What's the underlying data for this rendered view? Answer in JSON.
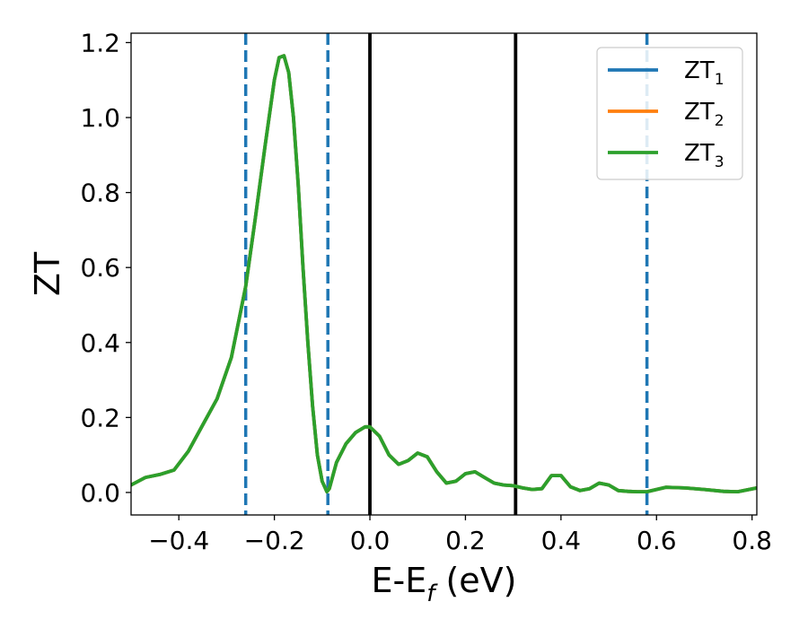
{
  "chart_data": {
    "type": "line",
    "title": "",
    "xlabel": {
      "main": "E-E",
      "sub": "f",
      "suffix": " (eV)"
    },
    "ylabel": "ZT",
    "xlim": [
      -0.5,
      0.81
    ],
    "ylim": [
      -0.06,
      1.225
    ],
    "xticks": [
      -0.4,
      -0.2,
      0.0,
      0.2,
      0.4,
      0.6,
      0.8
    ],
    "xtick_labels": [
      "−0.4",
      "−0.2",
      "0.0",
      "0.2",
      "0.4",
      "0.6",
      "0.8"
    ],
    "yticks": [
      0.0,
      0.2,
      0.4,
      0.6,
      0.8,
      1.0,
      1.2
    ],
    "ytick_labels": [
      "0.0",
      "0.2",
      "0.4",
      "0.6",
      "0.8",
      "1.0",
      "1.2"
    ],
    "grid": false,
    "legend_placement": "top-right",
    "vlines": [
      {
        "x": -0.26,
        "style": "dashed",
        "color": "#1f77b4"
      },
      {
        "x": -0.088,
        "style": "dashed",
        "color": "#1f77b4"
      },
      {
        "x": 0.0,
        "style": "solid",
        "color": "#000000"
      },
      {
        "x": 0.305,
        "style": "solid",
        "color": "#000000"
      },
      {
        "x": 0.58,
        "style": "dashed",
        "color": "#1f77b4"
      }
    ],
    "series": [
      {
        "name": {
          "main": "ZT",
          "sub": "1"
        },
        "color": "#1f77b4"
      },
      {
        "name": {
          "main": "ZT",
          "sub": "2"
        },
        "color": "#ff7f0e"
      },
      {
        "name": {
          "main": "ZT",
          "sub": "3"
        },
        "color": "#2ca02c"
      }
    ],
    "x": [
      -0.5,
      -0.47,
      -0.44,
      -0.41,
      -0.38,
      -0.35,
      -0.32,
      -0.29,
      -0.26,
      -0.24,
      -0.22,
      -0.2,
      -0.19,
      -0.18,
      -0.17,
      -0.16,
      -0.15,
      -0.14,
      -0.13,
      -0.12,
      -0.11,
      -0.1,
      -0.09,
      -0.085,
      -0.07,
      -0.05,
      -0.03,
      -0.01,
      0.0,
      0.02,
      0.04,
      0.06,
      0.08,
      0.1,
      0.12,
      0.14,
      0.16,
      0.18,
      0.2,
      0.22,
      0.24,
      0.26,
      0.28,
      0.3,
      0.32,
      0.34,
      0.36,
      0.38,
      0.4,
      0.42,
      0.44,
      0.46,
      0.48,
      0.5,
      0.52,
      0.54,
      0.56,
      0.58,
      0.62,
      0.66,
      0.7,
      0.74,
      0.77,
      0.81
    ],
    "y": [
      0.02,
      0.04,
      0.048,
      0.06,
      0.11,
      0.18,
      0.25,
      0.36,
      0.55,
      0.73,
      0.92,
      1.1,
      1.16,
      1.165,
      1.12,
      1.0,
      0.82,
      0.6,
      0.4,
      0.23,
      0.1,
      0.03,
      0.002,
      0.01,
      0.08,
      0.13,
      0.16,
      0.175,
      0.175,
      0.15,
      0.1,
      0.075,
      0.085,
      0.105,
      0.095,
      0.055,
      0.025,
      0.03,
      0.05,
      0.055,
      0.04,
      0.025,
      0.02,
      0.018,
      0.012,
      0.008,
      0.01,
      0.045,
      0.045,
      0.015,
      0.005,
      0.01,
      0.025,
      0.02,
      0.005,
      0.003,
      0.002,
      0.002,
      0.014,
      0.012,
      0.008,
      0.003,
      0.002,
      0.012
    ]
  }
}
